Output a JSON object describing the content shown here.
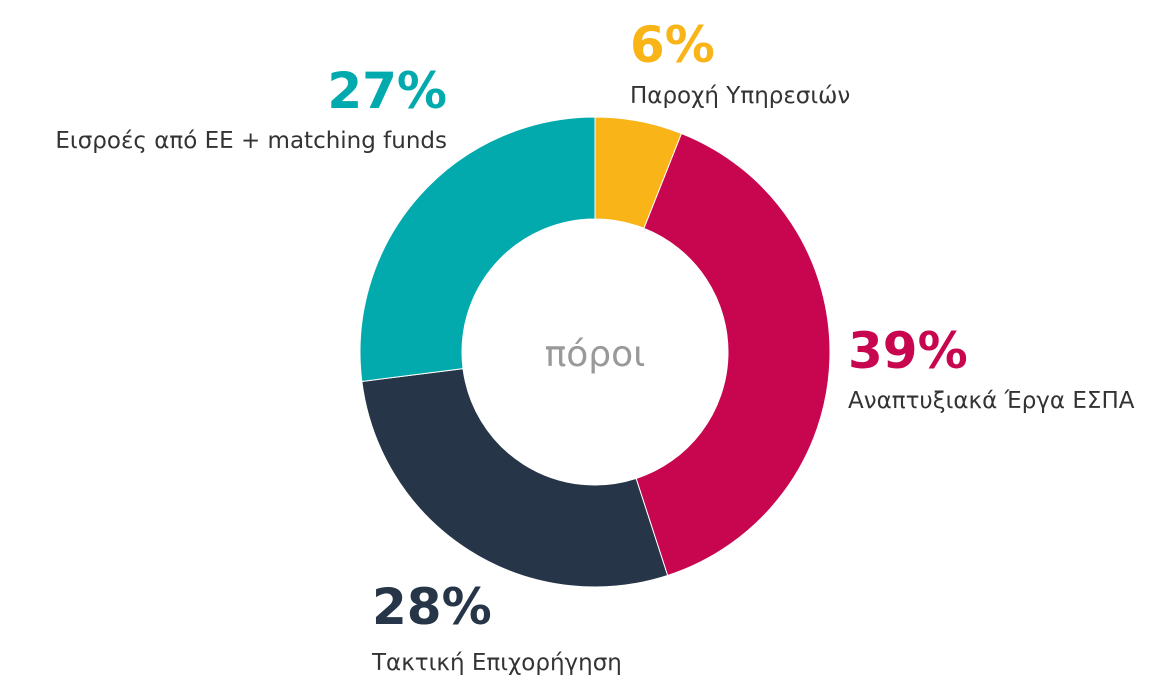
{
  "chart_data": {
    "type": "donut",
    "center_label": "πόροι",
    "categories": [
      "Παροχή Υπηρεσιών",
      "Αναπτυξιακά Έργα ΕΣΠΑ",
      "Τακτική Επιχορήγηση",
      "Εισροές από ΕΕ + matching funds"
    ],
    "values": [
      6,
      39,
      28,
      27
    ],
    "value_labels": [
      "6%",
      "39%",
      "28%",
      "27%"
    ],
    "colors": [
      "#f9b418",
      "#c8064f",
      "#263547",
      "#02aaad"
    ]
  }
}
